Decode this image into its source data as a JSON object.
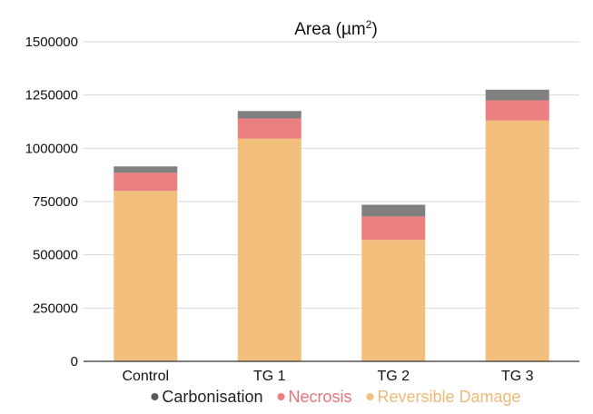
{
  "chart_data": {
    "type": "bar",
    "stacked": true,
    "title_prefix": "Area (µm",
    "title_superscript": "2",
    "title_suffix": ")",
    "categories": [
      "Control",
      "TG 1",
      "TG 2",
      "TG 3"
    ],
    "ylim": [
      0,
      1500000
    ],
    "yticks": [
      "0",
      "250000",
      "500000",
      "750000",
      "1000000",
      "1250000",
      "1500000"
    ],
    "grid": true,
    "legend_position": "bottom",
    "series": [
      {
        "name": "Reversible Damage",
        "color": "#F2BF7C",
        "values": [
          800000,
          1045000,
          570000,
          1130000
        ]
      },
      {
        "name": "Necrosis",
        "color": "#EC8080",
        "values": [
          85000,
          95000,
          110000,
          95000
        ]
      },
      {
        "name": "Carbonisation",
        "color": "#808080",
        "values": [
          30000,
          35000,
          55000,
          50000
        ]
      }
    ],
    "legend": [
      {
        "name": "Carbonisation",
        "color": "#595959",
        "text_color": "#222222"
      },
      {
        "name": "Necrosis",
        "color": "#EC7F7F",
        "text_color": "#E8747A"
      },
      {
        "name": "Reversible Damage",
        "color": "#F2BF7C",
        "text_color": "#EFB977"
      }
    ]
  }
}
